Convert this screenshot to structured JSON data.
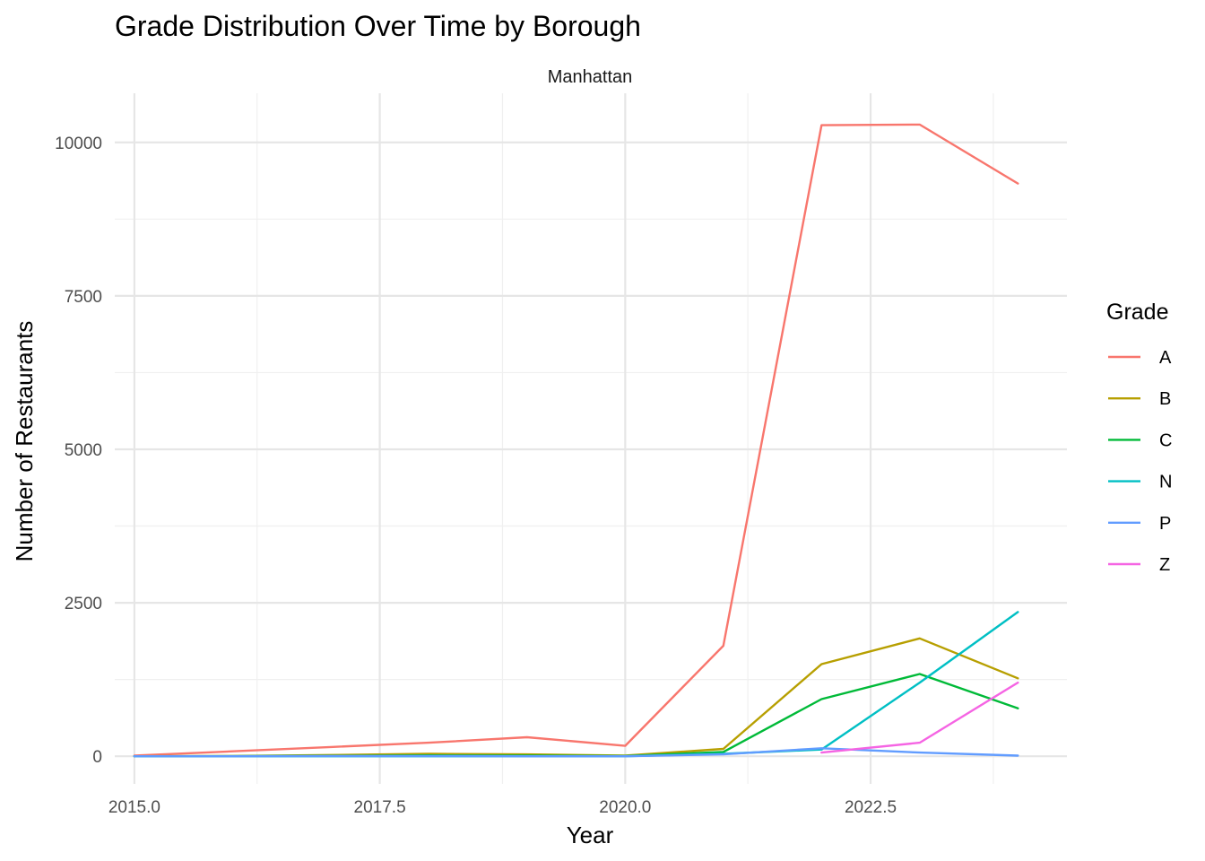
{
  "chart_data": {
    "type": "line",
    "title": "Grade Distribution Over Time by Borough",
    "facet": "Manhattan",
    "xlabel": "Year",
    "ylabel": "Number of Restaurants",
    "xlim": [
      2014.8,
      2024.5
    ],
    "ylim": [
      -450,
      10800
    ],
    "x_ticks": [
      2015.0,
      2017.5,
      2020.0,
      2022.5
    ],
    "x_tick_labels": [
      "2015.0",
      "2017.5",
      "2020.0",
      "2022.5"
    ],
    "y_ticks": [
      0,
      2500,
      5000,
      7500,
      10000
    ],
    "y_tick_labels": [
      "0",
      "2500",
      "5000",
      "7500",
      "10000"
    ],
    "x_minor": [
      2016.25,
      2018.75,
      2021.25,
      2023.75
    ],
    "y_minor": [
      1250,
      3750,
      6250,
      8750
    ],
    "grid": true,
    "legend": {
      "title": "Grade",
      "position": "right"
    },
    "series": [
      {
        "name": "A",
        "color": "#F8766D",
        "points": [
          [
            2015,
            10
          ],
          [
            2016,
            80
          ],
          [
            2017,
            150
          ],
          [
            2018,
            220
          ],
          [
            2019,
            310
          ],
          [
            2020,
            170
          ],
          [
            2021,
            1800
          ],
          [
            2022,
            10280
          ],
          [
            2023,
            10290
          ],
          [
            2024,
            9330
          ]
        ]
      },
      {
        "name": "B",
        "color": "#B79F00",
        "points": [
          [
            2015,
            0
          ],
          [
            2016,
            5
          ],
          [
            2017,
            20
          ],
          [
            2018,
            40
          ],
          [
            2019,
            30
          ],
          [
            2020,
            10
          ],
          [
            2021,
            120
          ],
          [
            2022,
            1500
          ],
          [
            2023,
            1920
          ],
          [
            2024,
            1270
          ]
        ]
      },
      {
        "name": "C",
        "color": "#00BA38",
        "points": [
          [
            2015,
            0
          ],
          [
            2016,
            2
          ],
          [
            2017,
            8
          ],
          [
            2018,
            15
          ],
          [
            2019,
            10
          ],
          [
            2020,
            5
          ],
          [
            2021,
            70
          ],
          [
            2022,
            930
          ],
          [
            2023,
            1340
          ],
          [
            2024,
            780
          ]
        ]
      },
      {
        "name": "N",
        "color": "#00BFC4",
        "points": [
          [
            2015,
            0
          ],
          [
            2016,
            0
          ],
          [
            2017,
            0
          ],
          [
            2018,
            0
          ],
          [
            2019,
            0
          ],
          [
            2020,
            0
          ],
          [
            2021,
            40
          ],
          [
            2022,
            110
          ],
          [
            2023,
            1200
          ],
          [
            2024,
            2350
          ]
        ]
      },
      {
        "name": "P",
        "color": "#619CFF",
        "points": [
          [
            2015,
            0
          ],
          [
            2016,
            0
          ],
          [
            2017,
            5
          ],
          [
            2018,
            5
          ],
          [
            2019,
            0
          ],
          [
            2020,
            0
          ],
          [
            2021,
            30
          ],
          [
            2022,
            130
          ],
          [
            2023,
            60
          ],
          [
            2024,
            10
          ]
        ]
      },
      {
        "name": "Z",
        "color": "#F564E3",
        "points": [
          [
            2022,
            60
          ],
          [
            2023,
            220
          ],
          [
            2024,
            1200
          ]
        ]
      }
    ]
  }
}
